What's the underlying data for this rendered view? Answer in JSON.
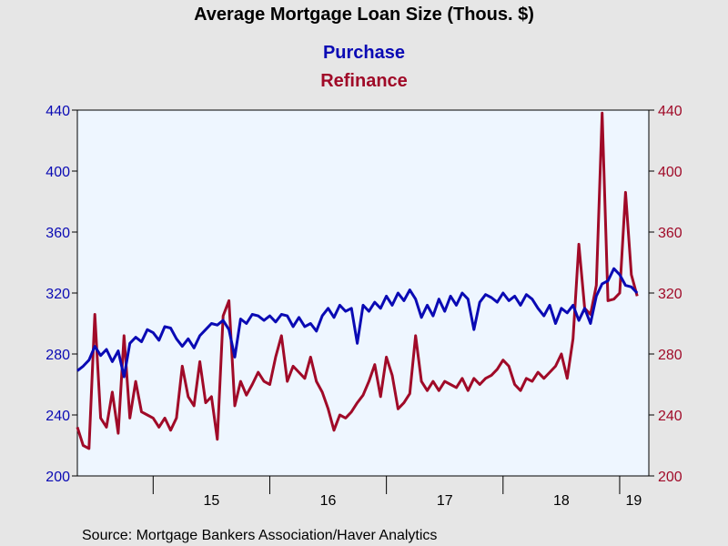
{
  "chart_data": {
    "type": "line",
    "title": "Average Mortgage Loan Size (Thous. $)",
    "source": "Source:  Mortgage Bankers Association/Haver Analytics",
    "grid": false,
    "legend": "top-center",
    "x_axis": {
      "range": [
        2014.35,
        2019.25
      ],
      "tick_labels": [
        "15",
        "16",
        "17",
        "18",
        "19"
      ],
      "tick_label_positions": [
        2015.5,
        2016.5,
        2017.5,
        2018.5,
        2019.12
      ],
      "tick_marks": [
        2015,
        2016,
        2017,
        2018,
        2019
      ]
    },
    "y_left": {
      "range": [
        200,
        440
      ],
      "ticks": [
        200,
        240,
        280,
        320,
        360,
        400,
        440
      ],
      "color": "#0a0ab4"
    },
    "y_right": {
      "range": [
        200,
        440
      ],
      "ticks": [
        200,
        240,
        280,
        320,
        360,
        400,
        440
      ],
      "color": "#a00a28"
    },
    "series": [
      {
        "name": "Purchase",
        "color": "#0a0ab4",
        "x": [
          2014.35,
          2014.4,
          2014.45,
          2014.5,
          2014.55,
          2014.6,
          2014.65,
          2014.7,
          2014.75,
          2014.8,
          2014.85,
          2014.9,
          2014.95,
          2015.0,
          2015.05,
          2015.1,
          2015.15,
          2015.2,
          2015.25,
          2015.3,
          2015.35,
          2015.4,
          2015.45,
          2015.5,
          2015.55,
          2015.6,
          2015.65,
          2015.7,
          2015.75,
          2015.8,
          2015.85,
          2015.9,
          2015.95,
          2016.0,
          2016.05,
          2016.1,
          2016.15,
          2016.2,
          2016.25,
          2016.3,
          2016.35,
          2016.4,
          2016.45,
          2016.5,
          2016.55,
          2016.6,
          2016.65,
          2016.7,
          2016.75,
          2016.8,
          2016.85,
          2016.9,
          2016.95,
          2017.0,
          2017.05,
          2017.1,
          2017.15,
          2017.2,
          2017.25,
          2017.3,
          2017.35,
          2017.4,
          2017.45,
          2017.5,
          2017.55,
          2017.6,
          2017.65,
          2017.7,
          2017.75,
          2017.8,
          2017.85,
          2017.9,
          2017.95,
          2018.0,
          2018.05,
          2018.1,
          2018.15,
          2018.2,
          2018.25,
          2018.3,
          2018.35,
          2018.4,
          2018.45,
          2018.5,
          2018.55,
          2018.6,
          2018.65,
          2018.7,
          2018.75,
          2018.8,
          2018.85,
          2018.9,
          2018.95,
          2019.0,
          2019.05,
          2019.1,
          2019.15
        ],
        "values": [
          269,
          272,
          276,
          285,
          279,
          283,
          275,
          282,
          265,
          287,
          291,
          288,
          296,
          294,
          289,
          298,
          297,
          290,
          285,
          290,
          284,
          292,
          296,
          300,
          299,
          302,
          296,
          278,
          303,
          300,
          306,
          305,
          302,
          305,
          301,
          306,
          305,
          298,
          304,
          298,
          300,
          295,
          305,
          310,
          304,
          312,
          308,
          310,
          287,
          312,
          308,
          314,
          310,
          318,
          312,
          320,
          315,
          322,
          316,
          304,
          312,
          305,
          316,
          308,
          318,
          312,
          320,
          316,
          296,
          314,
          319,
          317,
          314,
          320,
          315,
          318,
          312,
          319,
          316,
          310,
          305,
          312,
          300,
          310,
          307,
          312,
          302,
          310,
          300,
          318,
          326,
          328,
          336,
          332,
          325,
          324,
          320
        ]
      },
      {
        "name": "Refinance",
        "color": "#a00a28",
        "x": [
          2014.35,
          2014.4,
          2014.45,
          2014.5,
          2014.55,
          2014.6,
          2014.65,
          2014.7,
          2014.75,
          2014.8,
          2014.85,
          2014.9,
          2014.95,
          2015.0,
          2015.05,
          2015.1,
          2015.15,
          2015.2,
          2015.25,
          2015.3,
          2015.35,
          2015.4,
          2015.45,
          2015.5,
          2015.55,
          2015.6,
          2015.65,
          2015.7,
          2015.75,
          2015.8,
          2015.85,
          2015.9,
          2015.95,
          2016.0,
          2016.05,
          2016.1,
          2016.15,
          2016.2,
          2016.25,
          2016.3,
          2016.35,
          2016.4,
          2016.45,
          2016.5,
          2016.55,
          2016.6,
          2016.65,
          2016.7,
          2016.75,
          2016.8,
          2016.85,
          2016.9,
          2016.95,
          2017.0,
          2017.05,
          2017.1,
          2017.15,
          2017.2,
          2017.25,
          2017.3,
          2017.35,
          2017.4,
          2017.45,
          2017.5,
          2017.55,
          2017.6,
          2017.65,
          2017.7,
          2017.75,
          2017.8,
          2017.85,
          2017.9,
          2017.95,
          2018.0,
          2018.05,
          2018.1,
          2018.15,
          2018.2,
          2018.25,
          2018.3,
          2018.35,
          2018.4,
          2018.45,
          2018.5,
          2018.55,
          2018.6,
          2018.65,
          2018.7,
          2018.75,
          2018.8,
          2018.85,
          2018.9,
          2018.95,
          2019.0,
          2019.05,
          2019.1,
          2019.15
        ],
        "values": [
          232,
          220,
          218,
          306,
          238,
          232,
          255,
          228,
          292,
          238,
          262,
          242,
          240,
          238,
          232,
          238,
          230,
          238,
          272,
          252,
          246,
          275,
          248,
          252,
          224,
          305,
          315,
          246,
          262,
          253,
          260,
          268,
          262,
          260,
          278,
          292,
          262,
          272,
          268,
          264,
          278,
          262,
          255,
          244,
          230,
          240,
          238,
          242,
          248,
          253,
          262,
          273,
          252,
          278,
          266,
          244,
          248,
          254,
          292,
          262,
          256,
          262,
          256,
          262,
          260,
          258,
          264,
          256,
          264,
          260,
          264,
          266,
          270,
          276,
          272,
          260,
          256,
          264,
          262,
          268,
          264,
          268,
          272,
          280,
          264,
          290,
          352,
          310,
          306,
          325,
          438,
          315,
          316,
          320,
          386,
          332,
          318
        ]
      }
    ]
  }
}
